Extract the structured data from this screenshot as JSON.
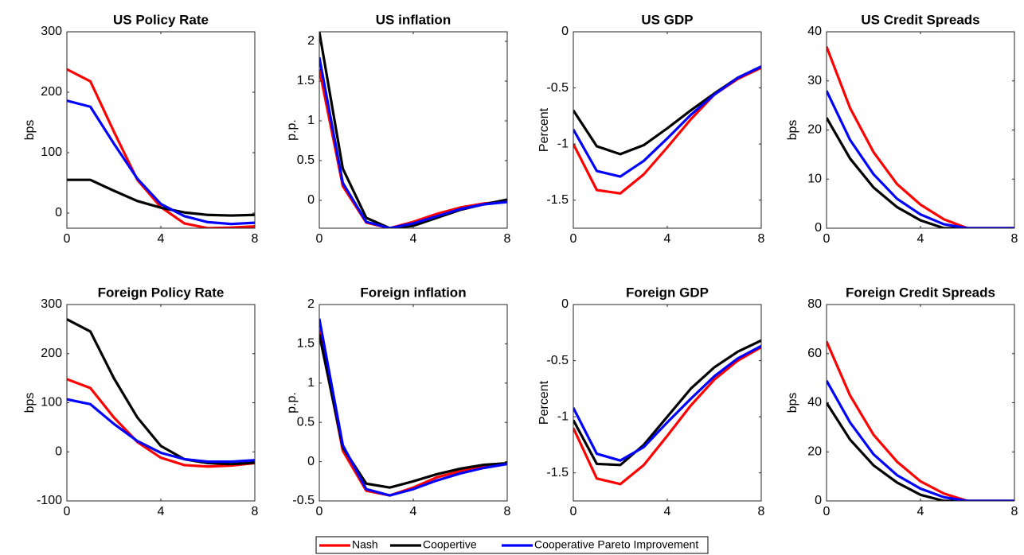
{
  "chart_data": [
    {
      "type": "line",
      "title": "US Policy Rate",
      "ylabel": "bps",
      "x": [
        0,
        1,
        2,
        3,
        4,
        5,
        6,
        7,
        8
      ],
      "xlim": [
        0,
        8
      ],
      "xticks": [
        0,
        4,
        8
      ],
      "ylim": [
        -25,
        300
      ],
      "yticks": [
        0,
        100,
        200,
        300
      ],
      "series": [
        {
          "name": "Nash",
          "color": "#ff0000",
          "values": [
            238,
            218,
            135,
            55,
            10,
            -17,
            -25,
            -24,
            -22
          ]
        },
        {
          "name": "Coopertive",
          "color": "#000000",
          "values": [
            55,
            55,
            37,
            20,
            9,
            1,
            -3,
            -4,
            -3
          ]
        },
        {
          "name": "Cooperative Pareto Improvement",
          "color": "#0000ff",
          "values": [
            186,
            176,
            115,
            57,
            15,
            -5,
            -15,
            -18,
            -16
          ]
        }
      ]
    },
    {
      "type": "line",
      "title": "US inflation",
      "ylabel": "p.p.",
      "x": [
        0,
        1,
        2,
        3,
        4,
        5,
        6,
        7,
        8
      ],
      "xlim": [
        0,
        8
      ],
      "xticks": [
        0,
        4,
        8
      ],
      "ylim": [
        -0.35,
        2.12
      ],
      "yticks": [
        0,
        0.5,
        1,
        1.5,
        2
      ],
      "series": [
        {
          "name": "Nash",
          "color": "#ff0000",
          "values": [
            1.65,
            0.18,
            -0.28,
            -0.35,
            -0.27,
            -0.17,
            -0.09,
            -0.04,
            -0.01
          ]
        },
        {
          "name": "Coopertive",
          "color": "#000000",
          "values": [
            2.12,
            0.4,
            -0.22,
            -0.35,
            -0.32,
            -0.22,
            -0.12,
            -0.05,
            0.01
          ]
        },
        {
          "name": "Cooperative Pareto Improvement",
          "color": "#0000ff",
          "values": [
            1.8,
            0.22,
            -0.27,
            -0.35,
            -0.29,
            -0.2,
            -0.11,
            -0.05,
            -0.02
          ]
        }
      ]
    },
    {
      "type": "line",
      "title": "US GDP",
      "ylabel": "Percent",
      "x": [
        0,
        1,
        2,
        3,
        4,
        5,
        6,
        7,
        8
      ],
      "xlim": [
        0,
        8
      ],
      "xticks": [
        0,
        4,
        8
      ],
      "ylim": [
        -1.75,
        0
      ],
      "yticks": [
        -1.5,
        -1,
        -0.5,
        0
      ],
      "series": [
        {
          "name": "Nash",
          "color": "#ff0000",
          "values": [
            -1.0,
            -1.41,
            -1.44,
            -1.27,
            -1.03,
            -0.78,
            -0.56,
            -0.42,
            -0.32
          ]
        },
        {
          "name": "Coopertive",
          "color": "#000000",
          "values": [
            -0.7,
            -1.02,
            -1.09,
            -1.01,
            -0.86,
            -0.7,
            -0.55,
            -0.41,
            -0.31
          ]
        },
        {
          "name": "Cooperative Pareto Improvement",
          "color": "#0000ff",
          "values": [
            -0.87,
            -1.24,
            -1.29,
            -1.15,
            -0.95,
            -0.74,
            -0.56,
            -0.41,
            -0.31
          ]
        }
      ]
    },
    {
      "type": "line",
      "title": "US Credit Spreads",
      "ylabel": "bps",
      "x": [
        0,
        1,
        2,
        3,
        4,
        5,
        6,
        7,
        8
      ],
      "xlim": [
        0,
        8
      ],
      "xticks": [
        0,
        4,
        8
      ],
      "ylim": [
        0,
        40
      ],
      "yticks": [
        0,
        10,
        20,
        30,
        40
      ],
      "series": [
        {
          "name": "Nash",
          "color": "#ff0000",
          "values": [
            37,
            24.5,
            15.5,
            9,
            4.8,
            1.8,
            0,
            0,
            0
          ]
        },
        {
          "name": "Coopertive",
          "color": "#000000",
          "values": [
            22.5,
            14.2,
            8.3,
            4.3,
            1.6,
            0,
            0,
            0,
            0
          ]
        },
        {
          "name": "Cooperative Pareto Improvement",
          "color": "#0000ff",
          "values": [
            28,
            18,
            11,
            6,
            2.8,
            0.8,
            0,
            0,
            0
          ]
        }
      ]
    },
    {
      "type": "line",
      "title": "Foreign Policy Rate",
      "ylabel": "bps",
      "x": [
        0,
        1,
        2,
        3,
        4,
        5,
        6,
        7,
        8
      ],
      "xlim": [
        0,
        8
      ],
      "xticks": [
        0,
        4,
        8
      ],
      "ylim": [
        -100,
        300
      ],
      "yticks": [
        -100,
        0,
        100,
        200,
        300
      ],
      "series": [
        {
          "name": "Nash",
          "color": "#ff0000",
          "values": [
            148,
            130,
            70,
            20,
            -12,
            -27,
            -30,
            -28,
            -23
          ]
        },
        {
          "name": "Coopertive",
          "color": "#000000",
          "values": [
            270,
            245,
            150,
            70,
            12,
            -15,
            -23,
            -25,
            -22
          ]
        },
        {
          "name": "Cooperative Pareto Improvement",
          "color": "#0000ff",
          "values": [
            107,
            97,
            57,
            22,
            -2,
            -15,
            -20,
            -20,
            -17
          ]
        }
      ]
    },
    {
      "type": "line",
      "title": "Foreign inflation",
      "ylabel": "p.p.",
      "x": [
        0,
        1,
        2,
        3,
        4,
        5,
        6,
        7,
        8
      ],
      "xlim": [
        0,
        8
      ],
      "xticks": [
        0,
        4,
        8
      ],
      "ylim": [
        -0.5,
        2
      ],
      "yticks": [
        -0.5,
        0,
        0.5,
        1,
        1.5,
        2
      ],
      "series": [
        {
          "name": "Nash",
          "color": "#ff0000",
          "values": [
            1.68,
            0.14,
            -0.37,
            -0.43,
            -0.33,
            -0.2,
            -0.12,
            -0.06,
            -0.03
          ]
        },
        {
          "name": "Coopertive",
          "color": "#000000",
          "values": [
            1.62,
            0.18,
            -0.28,
            -0.33,
            -0.25,
            -0.16,
            -0.09,
            -0.04,
            -0.02
          ]
        },
        {
          "name": "Cooperative Pareto Improvement",
          "color": "#0000ff",
          "values": [
            1.82,
            0.21,
            -0.35,
            -0.43,
            -0.35,
            -0.24,
            -0.15,
            -0.08,
            -0.03
          ]
        }
      ]
    },
    {
      "type": "line",
      "title": "Foreign GDP",
      "ylabel": "Percent",
      "x": [
        0,
        1,
        2,
        3,
        4,
        5,
        6,
        7,
        8
      ],
      "xlim": [
        0,
        8
      ],
      "xticks": [
        0,
        4,
        8
      ],
      "ylim": [
        -1.75,
        0
      ],
      "yticks": [
        -1.5,
        -1,
        -0.5,
        0
      ],
      "series": [
        {
          "name": "Nash",
          "color": "#ff0000",
          "values": [
            -1.1,
            -1.55,
            -1.6,
            -1.43,
            -1.17,
            -0.9,
            -0.67,
            -0.5,
            -0.38
          ]
        },
        {
          "name": "Coopertive",
          "color": "#000000",
          "values": [
            -1.03,
            -1.42,
            -1.43,
            -1.25,
            -1.0,
            -0.75,
            -0.56,
            -0.42,
            -0.32
          ]
        },
        {
          "name": "Cooperative Pareto Improvement",
          "color": "#0000ff",
          "values": [
            -0.92,
            -1.33,
            -1.39,
            -1.27,
            -1.05,
            -0.84,
            -0.64,
            -0.48,
            -0.37
          ]
        }
      ]
    },
    {
      "type": "line",
      "title": "Foreign Credit Spreads",
      "ylabel": "bps",
      "x": [
        0,
        1,
        2,
        3,
        4,
        5,
        6,
        7,
        8
      ],
      "xlim": [
        0,
        8
      ],
      "xticks": [
        0,
        4,
        8
      ],
      "ylim": [
        0,
        80
      ],
      "yticks": [
        0,
        20,
        40,
        60,
        80
      ],
      "series": [
        {
          "name": "Nash",
          "color": "#ff0000",
          "values": [
            65,
            43,
            27,
            16,
            8,
            3,
            0,
            0,
            0
          ]
        },
        {
          "name": "Coopertive",
          "color": "#000000",
          "values": [
            40,
            25,
            14.5,
            7.5,
            2.5,
            0,
            0,
            0,
            0
          ]
        },
        {
          "name": "Cooperative Pareto Improvement",
          "color": "#0000ff",
          "values": [
            49,
            32,
            19,
            10.5,
            5,
            1.5,
            0,
            0,
            0
          ]
        }
      ]
    }
  ]
}
